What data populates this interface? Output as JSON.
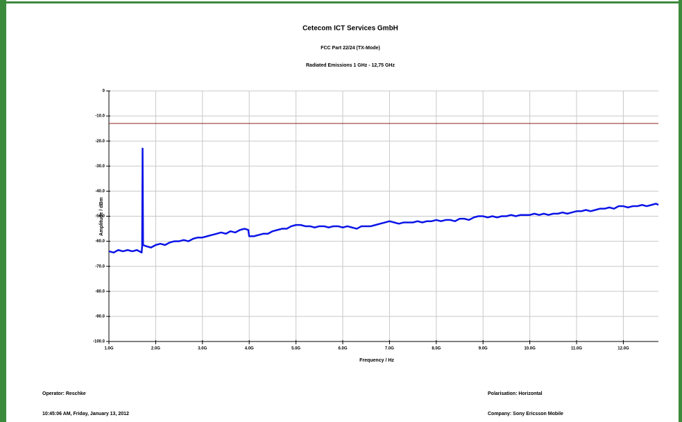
{
  "chart_data": {
    "type": "line",
    "title": "Cetecom ICT Services GmbH",
    "subtitle": "FCC Part 22/24 (TX-Mode)",
    "subtitle2": "Radiated Emissions 1 GHz - 12,75 GHz",
    "xlabel": "Frequency / Hz",
    "ylabel": "Amplitude / dBm",
    "xlim": [
      1000000000.0,
      12750000000.0
    ],
    "ylim": [
      -100,
      0
    ],
    "xticks": [
      {
        "value": 1000000000.0,
        "label": "1.0G"
      },
      {
        "value": 2000000000.0,
        "label": "2.0G"
      },
      {
        "value": 3000000000.0,
        "label": "3.0G"
      },
      {
        "value": 4000000000.0,
        "label": "4.0G"
      },
      {
        "value": 5000000000.0,
        "label": "5.0G"
      },
      {
        "value": 6000000000.0,
        "label": "6.0G"
      },
      {
        "value": 7000000000.0,
        "label": "7.0G"
      },
      {
        "value": 8000000000.0,
        "label": "8.0G"
      },
      {
        "value": 9000000000.0,
        "label": "9.0G"
      },
      {
        "value": 10000000000.0,
        "label": "10.0G"
      },
      {
        "value": 11000000000.0,
        "label": "11.0G"
      },
      {
        "value": 12000000000.0,
        "label": "12.0G"
      }
    ],
    "yticks": [
      0,
      {
        "value": -10,
        "label": "-10.0"
      },
      {
        "value": -20,
        "label": "-20.0"
      },
      {
        "value": -30,
        "label": "-30.0"
      },
      {
        "value": -40,
        "label": "-40.0"
      },
      {
        "value": -50,
        "label": "-50.0"
      },
      {
        "value": -60,
        "label": "-60.0"
      },
      {
        "value": -70,
        "label": "-70.0"
      },
      {
        "value": -80,
        "label": "-80.0"
      },
      {
        "value": -90,
        "label": "-90.0"
      },
      {
        "value": -100,
        "label": "-100.0"
      }
    ],
    "grid": true,
    "limit_line": {
      "value": -13,
      "color": "#8b2020"
    },
    "series": [
      {
        "color": "#0a14e6",
        "x": [
          1000000000.0,
          1100000000.0,
          1200000000.0,
          1300000000.0,
          1400000000.0,
          1500000000.0,
          1600000000.0,
          1700000000.0,
          1710000000.0,
          1720000000.0,
          1730000000.0,
          1800000000.0,
          1900000000.0,
          2000000000.0,
          2100000000.0,
          2200000000.0,
          2300000000.0,
          2400000000.0,
          2500000000.0,
          2600000000.0,
          2700000000.0,
          2800000000.0,
          2900000000.0,
          3000000000.0,
          3100000000.0,
          3200000000.0,
          3300000000.0,
          3400000000.0,
          3500000000.0,
          3600000000.0,
          3700000000.0,
          3800000000.0,
          3900000000.0,
          3980000000.0,
          4000000000.0,
          4100000000.0,
          4200000000.0,
          4300000000.0,
          4400000000.0,
          4500000000.0,
          4600000000.0,
          4700000000.0,
          4800000000.0,
          4900000000.0,
          5000000000.0,
          5100000000.0,
          5200000000.0,
          5300000000.0,
          5400000000.0,
          5500000000.0,
          5600000000.0,
          5700000000.0,
          5800000000.0,
          5900000000.0,
          6000000000.0,
          6100000000.0,
          6200000000.0,
          6300000000.0,
          6400000000.0,
          6500000000.0,
          6600000000.0,
          6700000000.0,
          6800000000.0,
          6900000000.0,
          7000000000.0,
          7100000000.0,
          7200000000.0,
          7300000000.0,
          7400000000.0,
          7500000000.0,
          7600000000.0,
          7700000000.0,
          7800000000.0,
          7900000000.0,
          8000000000.0,
          8100000000.0,
          8200000000.0,
          8300000000.0,
          8400000000.0,
          8500000000.0,
          8600000000.0,
          8700000000.0,
          8800000000.0,
          8900000000.0,
          9000000000.0,
          9100000000.0,
          9200000000.0,
          9300000000.0,
          9400000000.0,
          9500000000.0,
          9600000000.0,
          9700000000.0,
          9800000000.0,
          9900000000.0,
          10000000000.0,
          10100000000.0,
          10200000000.0,
          10300000000.0,
          10400000000.0,
          10500000000.0,
          10600000000.0,
          10700000000.0,
          10800000000.0,
          10900000000.0,
          11000000000.0,
          11100000000.0,
          11200000000.0,
          11300000000.0,
          11400000000.0,
          11500000000.0,
          11600000000.0,
          11700000000.0,
          11800000000.0,
          11900000000.0,
          12000000000.0,
          12100000000.0,
          12200000000.0,
          12300000000.0,
          12400000000.0,
          12500000000.0,
          12600000000.0,
          12700000000.0,
          12750000000.0
        ],
        "values": [
          -64,
          -64.5,
          -63.5,
          -64,
          -63.5,
          -64,
          -63.5,
          -64.5,
          -62,
          -23,
          -61.5,
          -62,
          -62.5,
          -61.5,
          -61,
          -61.5,
          -60.5,
          -60,
          -60,
          -59.5,
          -60,
          -59,
          -58.5,
          -58.5,
          -58,
          -57.5,
          -57,
          -56.5,
          -57,
          -56,
          -56.5,
          -55.5,
          -55,
          -55.5,
          -58,
          -58,
          -57.5,
          -57,
          -57,
          -56,
          -55.5,
          -55,
          -55,
          -54,
          -53.5,
          -53.5,
          -54,
          -54,
          -54.5,
          -54,
          -54,
          -54.5,
          -54,
          -54,
          -54.5,
          -54,
          -54.5,
          -55,
          -54,
          -54,
          -54,
          -53.5,
          -53,
          -52.5,
          -52,
          -52.5,
          -53,
          -52.5,
          -52.5,
          -52.5,
          -52,
          -52.5,
          -52,
          -52,
          -51.5,
          -52,
          -51.5,
          -51.5,
          -52,
          -51,
          -51,
          -51.5,
          -50.5,
          -50,
          -50,
          -50.5,
          -50,
          -50.5,
          -50,
          -50,
          -49.5,
          -50,
          -49.5,
          -49.5,
          -49.5,
          -49,
          -49.5,
          -49,
          -49.5,
          -49,
          -49,
          -48.5,
          -49,
          -48.5,
          -48,
          -48,
          -47.5,
          -48,
          -47.5,
          -47,
          -47,
          -46.5,
          -47,
          -46,
          -46,
          -46.5,
          -46,
          -46,
          -45.5,
          -46,
          -45.5,
          -45,
          -45.5
        ]
      }
    ],
    "footer": [
      "Operator: Reschke",
      "10:45:06 AM, Friday, January 13, 2012",
      "Polarisation: Horizontal",
      "Company: Sony Ericsson Mobile"
    ]
  }
}
